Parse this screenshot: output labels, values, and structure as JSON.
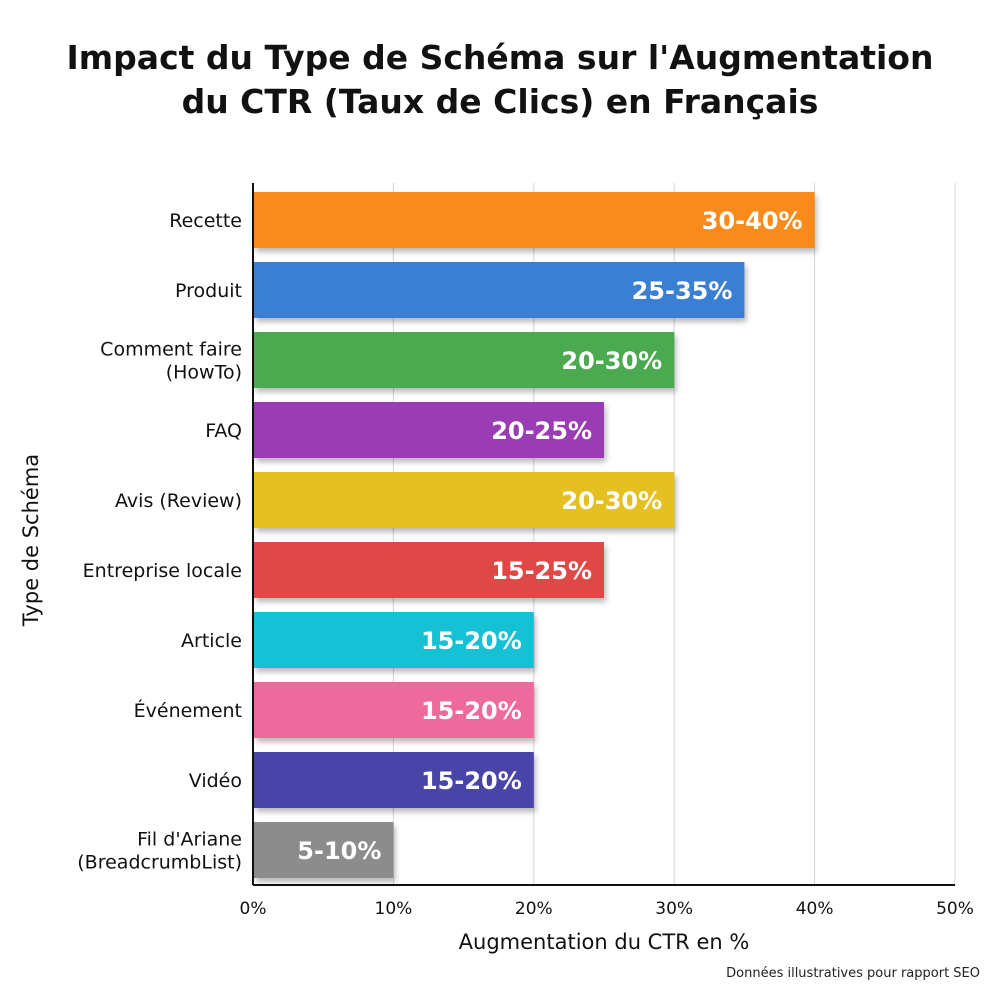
{
  "chart_data": {
    "type": "bar",
    "orientation": "horizontal",
    "title": "Impact du Type de Schéma sur l'Augmentation du CTR (Taux de Clics) en Français",
    "title_lines": [
      "Impact du Type de Schéma sur l'Augmentation",
      "du CTR (Taux de Clics) en Français"
    ],
    "xlabel": "Augmentation du CTR en %",
    "ylabel": "Type de Schéma",
    "xlim": [
      0,
      50
    ],
    "xticks": [
      "0%",
      "10%",
      "20%",
      "30%",
      "40%",
      "50%"
    ],
    "grid": "vertical",
    "categories": [
      [
        "Recette"
      ],
      [
        "Produit"
      ],
      [
        "Comment faire",
        "(HowTo)"
      ],
      [
        "FAQ"
      ],
      [
        "Avis (Review)"
      ],
      [
        "Entreprise locale"
      ],
      [
        "Article"
      ],
      [
        "Événement"
      ],
      [
        "Vidéo"
      ],
      [
        "Fil d'Ariane",
        "(BreadcrumbList)"
      ]
    ],
    "ranges": [
      [
        30,
        40
      ],
      [
        25,
        35
      ],
      [
        20,
        30
      ],
      [
        20,
        25
      ],
      [
        20,
        30
      ],
      [
        15,
        25
      ],
      [
        15,
        20
      ],
      [
        15,
        20
      ],
      [
        15,
        20
      ],
      [
        5,
        10
      ]
    ],
    "data_labels": [
      "30-40%",
      "25-35%",
      "20-30%",
      "20-25%",
      "20-30%",
      "15-25%",
      "15-20%",
      "15-20%",
      "15-20%",
      "5-10%"
    ],
    "colors": [
      "#F98B1E",
      "#3B7FD4",
      "#4CAA4F",
      "#9A3DB4",
      "#E5C020",
      "#E04646",
      "#19C1D6",
      "#EE6B9C",
      "#4A45A8",
      "#8C8C8C"
    ],
    "footnote": "Données illustratives pour rapport SEO"
  }
}
